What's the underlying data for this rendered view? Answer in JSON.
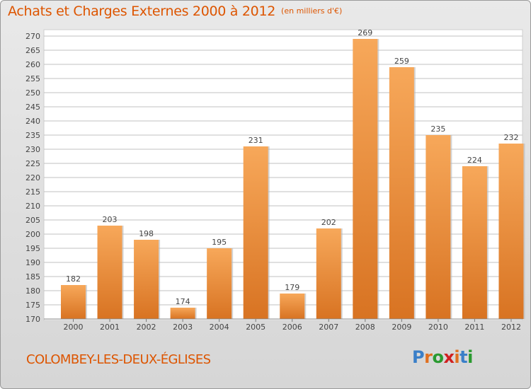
{
  "title": "Achats et Charges Externes 2000 à 2012",
  "unit": "(en milliers d'€)",
  "commune": "COLOMBEY-LES-DEUX-ÉGLISES",
  "logo": {
    "text": "Proxiti",
    "letter_colors": [
      "#3a7fc8",
      "#e07020",
      "#2a9a30",
      "#d02020",
      "#e07020",
      "#3a7fc8",
      "#2a9a30"
    ]
  },
  "colors": {
    "title": "#dd5500",
    "bar_light": "#f7a85a",
    "bar_dark": "#d87322",
    "grid": "#c0c0c0",
    "axis_text": "#444444"
  },
  "chart_data": {
    "type": "bar",
    "categories": [
      "2000",
      "2001",
      "2002",
      "2003",
      "2004",
      "2005",
      "2006",
      "2007",
      "2008",
      "2009",
      "2010",
      "2011",
      "2012"
    ],
    "values": [
      182,
      203,
      198,
      174,
      195,
      231,
      179,
      202,
      269,
      259,
      235,
      224,
      232
    ],
    "ylim": [
      170,
      270
    ],
    "ytick_step": 5,
    "grid": true,
    "data_labels": true
  }
}
